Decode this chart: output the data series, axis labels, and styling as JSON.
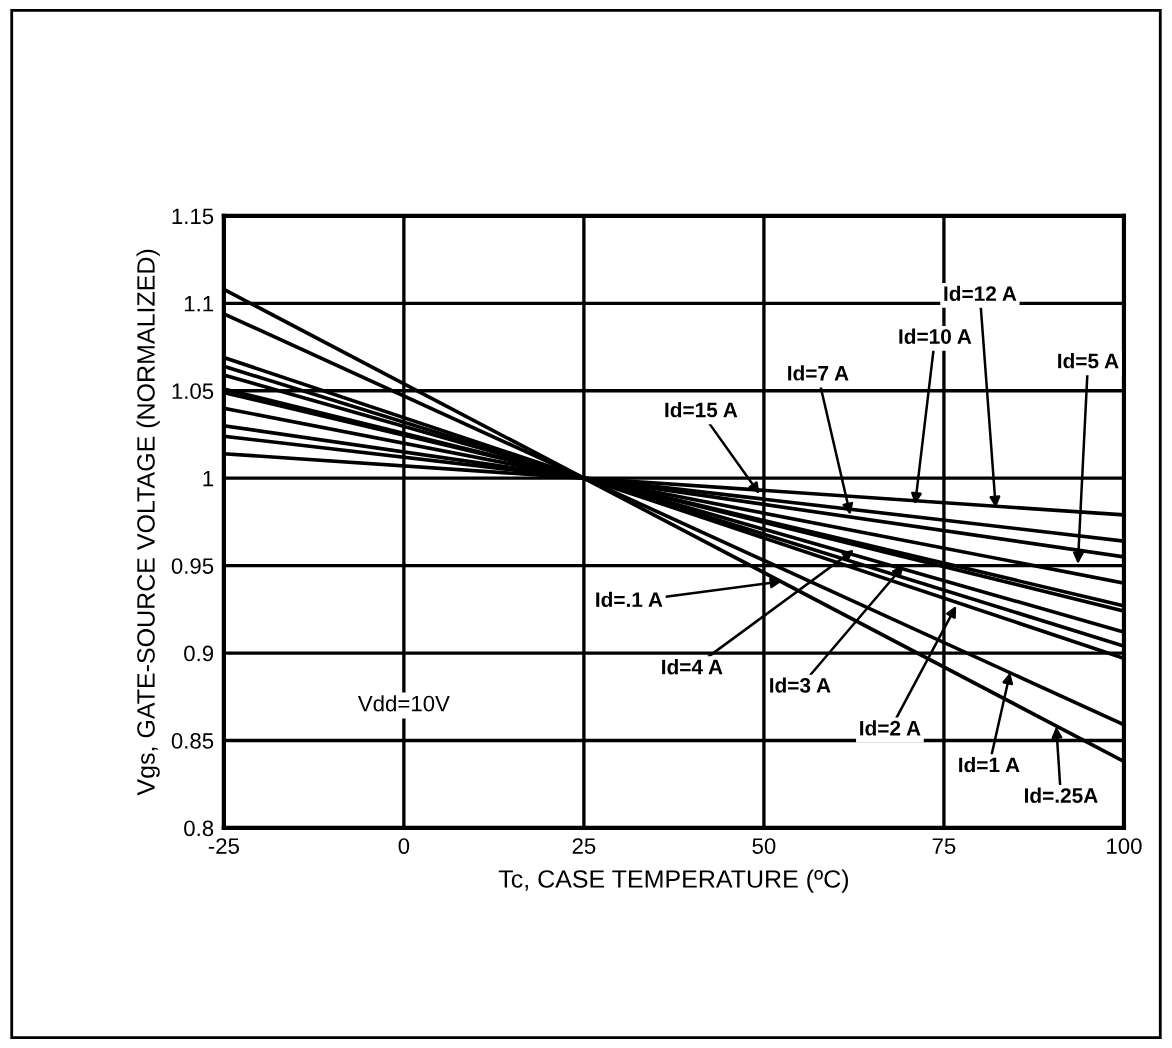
{
  "chart_data": {
    "type": "line",
    "xlabel": "Tc, CASE TEMPERATURE (ºC)",
    "ylabel": "Vgs, GATE-SOURCE VOLTAGE (NORMALIZED)",
    "x": [
      -25,
      100
    ],
    "series": [
      {
        "color": "#000000",
        "values": [
          1.108,
          0.838
        ]
      },
      {
        "color": "#000000",
        "values": [
          1.094,
          0.859
        ]
      },
      {
        "color": "#000000",
        "values": [
          1.069,
          0.897
        ]
      },
      {
        "color": "#000000",
        "values": [
          1.064,
          0.904
        ]
      },
      {
        "color": "#000000",
        "values": [
          1.059,
          0.912
        ]
      },
      {
        "color": "#000000",
        "values": [
          1.051,
          0.924
        ]
      },
      {
        "color": "#000000",
        "values": [
          1.049,
          0.927
        ]
      },
      {
        "color": "#000000",
        "values": [
          1.04,
          0.94
        ]
      },
      {
        "color": "#000000",
        "values": [
          1.03,
          0.955
        ]
      },
      {
        "color": "#000000",
        "values": [
          1.024,
          0.964
        ]
      },
      {
        "color": "#000000",
        "values": [
          1.014,
          0.979
        ]
      }
    ],
    "xlim": [
      -25,
      100
    ],
    "xticks": [
      -25,
      0,
      25,
      50,
      75,
      100
    ],
    "ylim": [
      0.8,
      1.15
    ],
    "yticks": [
      0.8,
      0.85,
      0.9,
      0.95,
      1,
      1.05,
      1.1,
      1.15
    ],
    "grid": true,
    "marker": "none",
    "line_style": "solid",
    "annotations": [
      {
        "text": "Id=12 A",
        "x": 82.2,
        "y": 0.983
      },
      {
        "text": "Id=10 A",
        "x": 71,
        "y": 0.985
      },
      {
        "text": "Id=7 A",
        "x": 62,
        "y": 0.979
      },
      {
        "text": "Id=5 A",
        "x": 93.6,
        "y": 0.951
      },
      {
        "text": "Id=15 A",
        "x": 49.4,
        "y": 0.991
      },
      {
        "text": "Id=.1 A",
        "x": 52.5,
        "y": 0.941
      },
      {
        "text": "Id=4 A",
        "x": 62.5,
        "y": 0.959
      },
      {
        "text": "Id=3 A",
        "x": 69.4,
        "y": 0.95
      },
      {
        "text": "Id=2 A",
        "x": 76.7,
        "y": 0.927
      },
      {
        "text": "Id=1 A",
        "x": 84.2,
        "y": 0.889
      },
      {
        "text": "Id=.25A",
        "x": 90.6,
        "y": 0.858
      },
      "Vdd=10V"
    ]
  }
}
